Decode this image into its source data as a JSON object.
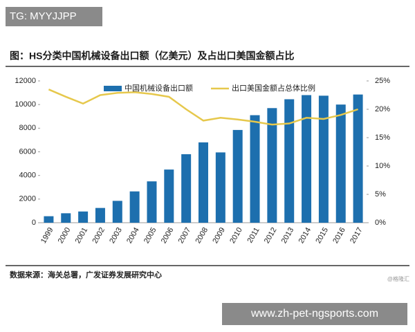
{
  "watermark": "TG: MYYJJPP",
  "chart_data": {
    "type": "bar",
    "title": "图：HS分类中国机械设备出口额（亿美元）及占出口美国金额占比",
    "categories": [
      "1999",
      "2000",
      "2001",
      "2002",
      "2003",
      "2004",
      "2005",
      "2006",
      "2007",
      "2008",
      "2009",
      "2010",
      "2011",
      "2012",
      "2013",
      "2014",
      "2015",
      "2016",
      "2017"
    ],
    "series": [
      {
        "name": "中国机械设备出口额",
        "type": "bar",
        "color": "#1d6fae",
        "values": [
          550,
          800,
          950,
          1250,
          1850,
          2650,
          3500,
          4500,
          5800,
          6800,
          5950,
          7850,
          9100,
          9700,
          10450,
          10800,
          10750,
          10000,
          10850
        ]
      },
      {
        "name": "出口美国金额占总体比例",
        "type": "line",
        "axis": "y2",
        "color": "#e6c84c",
        "values": [
          23.5,
          22.2,
          21.0,
          22.5,
          22.9,
          23.0,
          22.7,
          22.2,
          20.0,
          18.0,
          18.5,
          18.2,
          17.8,
          17.3,
          17.5,
          18.5,
          18.3,
          19.0,
          20.0
        ]
      }
    ],
    "ylim": [
      0,
      12000
    ],
    "yticks": [
      0,
      2000,
      4000,
      6000,
      8000,
      10000,
      12000
    ],
    "y2lim": [
      0,
      25
    ],
    "y2ticks": [
      {
        "value": 0,
        "label": "0%"
      },
      {
        "value": 5,
        "label": "5%"
      },
      {
        "value": 10,
        "label": "10%"
      },
      {
        "value": 15,
        "label": "15%"
      },
      {
        "value": 20,
        "label": "20%"
      },
      {
        "value": 25,
        "label": "25%"
      }
    ],
    "grid": false,
    "legend": "top"
  },
  "source": "数据来源：海关总署，广发证券发展研究中心",
  "credit": "@格隆汇",
  "banner": "www.zh-pet-ngsports.com"
}
